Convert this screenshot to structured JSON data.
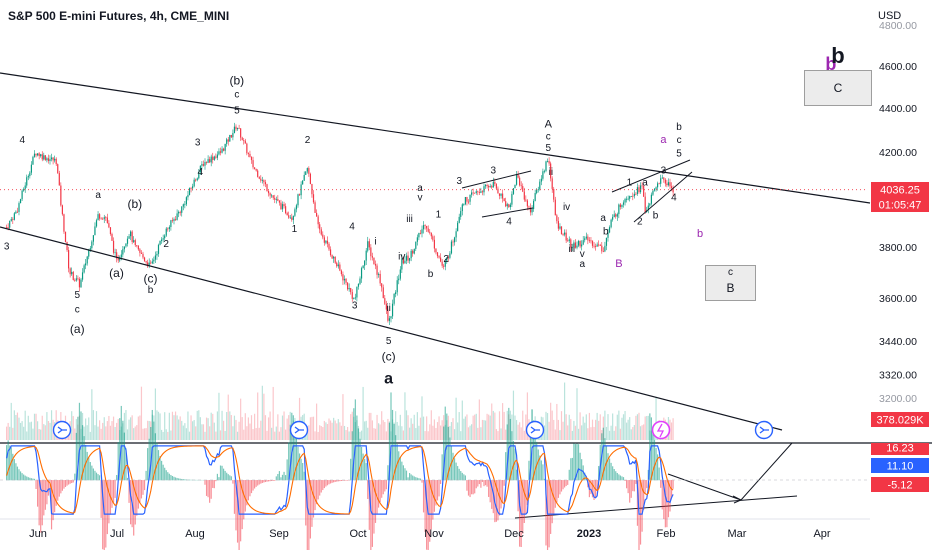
{
  "header": {
    "title": "S&P 500 E-mini Futures, 4h, CME_MINI",
    "currency": "USD"
  },
  "price_tag": {
    "price": "4036.25",
    "countdown": "01:05:47"
  },
  "volume_tag": "378.029K",
  "oscillator_tags": {
    "top": "16.23",
    "mid": "11.10",
    "bottom": "-5.12"
  },
  "chart_data": {
    "type": "candlestick",
    "y_axis": {
      "ticks": [
        "4600.00",
        "4400.00",
        "4200.00",
        "4000.00",
        "3800.00",
        "3600.00",
        "3440.00",
        "3320.00"
      ],
      "partial_ticks": [
        "4800.00",
        "3200.00"
      ]
    },
    "x_axis": {
      "ticks": [
        "Jun",
        "Jul",
        "Aug",
        "Sep",
        "Oct",
        "Nov",
        "Dec",
        "2023",
        "Feb",
        "Mar",
        "Apr"
      ]
    },
    "price_path": [
      [
        "2022-05-20",
        3880
      ],
      [
        "2022-05-24",
        3950
      ],
      [
        "2022-05-31",
        4200
      ],
      [
        "2022-06-03",
        4180
      ],
      [
        "2022-06-08",
        4160
      ],
      [
        "2022-06-10",
        3950
      ],
      [
        "2022-06-13",
        3700
      ],
      [
        "2022-06-17",
        3650
      ],
      [
        "2022-06-24",
        3930
      ],
      [
        "2022-06-27",
        3920
      ],
      [
        "2022-07-01",
        3740
      ],
      [
        "2022-07-06",
        3860
      ],
      [
        "2022-07-08",
        3800
      ],
      [
        "2022-07-14",
        3720
      ],
      [
        "2022-07-19",
        3850
      ],
      [
        "2022-07-26",
        3960
      ],
      [
        "2022-08-03",
        4150
      ],
      [
        "2022-08-10",
        4200
      ],
      [
        "2022-08-16",
        4320
      ],
      [
        "2022-08-22",
        4140
      ],
      [
        "2022-08-30",
        4000
      ],
      [
        "2022-09-06",
        3920
      ],
      [
        "2022-09-12",
        4130
      ],
      [
        "2022-09-16",
        3880
      ],
      [
        "2022-09-23",
        3730
      ],
      [
        "2022-09-30",
        3590
      ],
      [
        "2022-10-05",
        3810
      ],
      [
        "2022-10-10",
        3660
      ],
      [
        "2022-10-13",
        3500
      ],
      [
        "2022-10-18",
        3740
      ],
      [
        "2022-10-21",
        3760
      ],
      [
        "2022-10-27",
        3900
      ],
      [
        "2022-11-03",
        3710
      ],
      [
        "2022-11-07",
        3840
      ],
      [
        "2022-11-10",
        3980
      ],
      [
        "2022-11-15",
        4020
      ],
      [
        "2022-11-22",
        4060
      ],
      [
        "2022-11-28",
        3960
      ],
      [
        "2022-12-01",
        4100
      ],
      [
        "2022-12-06",
        3940
      ],
      [
        "2022-12-13",
        4180
      ],
      [
        "2022-12-16",
        3900
      ],
      [
        "2022-12-22",
        3800
      ],
      [
        "2022-12-28",
        3830
      ],
      [
        "2023-01-03",
        3790
      ],
      [
        "2023-01-06",
        3900
      ],
      [
        "2023-01-11",
        4000
      ],
      [
        "2023-01-18",
        4050
      ],
      [
        "2023-01-19",
        3940
      ],
      [
        "2023-01-24",
        4070
      ],
      [
        "2023-01-26",
        4080
      ],
      [
        "2023-01-30",
        4036
      ]
    ],
    "current_price": 4036.25,
    "wave_labels": [
      {
        "t": "2022-05-26",
        "p": 4240,
        "text": "4"
      },
      {
        "t": "2022-05-20",
        "p": 3790,
        "text": "3"
      },
      {
        "t": "2022-06-16",
        "p": 3600,
        "text": "5"
      },
      {
        "t": "2022-06-16",
        "p": 3545,
        "text": "c"
      },
      {
        "t": "2022-06-16",
        "p": 3470,
        "text": "(a)"
      },
      {
        "t": "2022-06-24",
        "p": 4000,
        "text": "a"
      },
      {
        "t": "2022-07-01",
        "p": 3680,
        "text": "(a)"
      },
      {
        "t": "2022-07-08",
        "p": 3960,
        "text": "(b)"
      },
      {
        "t": "2022-07-14",
        "p": 3660,
        "text": "(c)"
      },
      {
        "t": "2022-07-14",
        "p": 3620,
        "text": "b"
      },
      {
        "t": "2022-07-20",
        "p": 3800,
        "text": "2"
      },
      {
        "t": "2022-08-01",
        "p": 4230,
        "text": "3"
      },
      {
        "t": "2022-08-02",
        "p": 4100,
        "text": "4"
      },
      {
        "t": "2022-08-16",
        "p": 4510,
        "text": "(b)"
      },
      {
        "t": "2022-08-16",
        "p": 4450,
        "text": "c"
      },
      {
        "t": "2022-08-16",
        "p": 4375,
        "text": "5"
      },
      {
        "t": "2022-09-12",
        "p": 4240,
        "text": "2"
      },
      {
        "t": "2022-09-07",
        "p": 3860,
        "text": "1"
      },
      {
        "t": "2022-09-29",
        "p": 3870,
        "text": "4"
      },
      {
        "t": "2022-09-30",
        "p": 3560,
        "text": "3"
      },
      {
        "t": "2022-10-08",
        "p": 3810,
        "text": "i"
      },
      {
        "t": "2022-10-13",
        "p": 3550,
        "text": "ii"
      },
      {
        "t": "2022-10-13",
        "p": 3430,
        "text": "5"
      },
      {
        "t": "2022-10-13",
        "p": 3370,
        "text": "(c)"
      },
      {
        "t": "2022-10-13",
        "p": 3290,
        "text": "a"
      },
      {
        "t": "2022-10-18",
        "p": 3750,
        "text": "iv"
      },
      {
        "t": "2022-10-21",
        "p": 3900,
        "text": "iii"
      },
      {
        "t": "2022-10-25",
        "p": 3990,
        "text": "v"
      },
      {
        "t": "2022-10-25",
        "p": 4030,
        "text": "a"
      },
      {
        "t": "2022-10-29",
        "p": 3680,
        "text": "b"
      },
      {
        "t": "2022-11-01",
        "p": 3920,
        "text": "1"
      },
      {
        "t": "2022-11-04",
        "p": 3740,
        "text": "2"
      },
      {
        "t": "2022-11-09",
        "p": 4060,
        "text": "3"
      },
      {
        "t": "2022-11-22",
        "p": 4105,
        "text": "3"
      },
      {
        "t": "2022-11-28",
        "p": 3890,
        "text": "4"
      },
      {
        "t": "2022-12-13",
        "p": 4310,
        "text": "A"
      },
      {
        "t": "2022-12-13",
        "p": 4255,
        "text": "c"
      },
      {
        "t": "2022-12-13",
        "p": 4205,
        "text": "5"
      },
      {
        "t": "2022-12-14",
        "p": 4100,
        "text": "ii"
      },
      {
        "t": "2022-12-20",
        "p": 3950,
        "text": "iv"
      },
      {
        "t": "2022-12-22",
        "p": 3780,
        "text": "iii"
      },
      {
        "t": "2022-12-26",
        "p": 3760,
        "text": "v"
      },
      {
        "t": "2022-12-26",
        "p": 3720,
        "text": "a"
      },
      {
        "t": "2023-01-04",
        "p": 3850,
        "text": "b"
      },
      {
        "t": "2023-01-03",
        "p": 3905,
        "text": "a"
      },
      {
        "t": "2023-01-13",
        "p": 4055,
        "text": "1"
      },
      {
        "t": "2023-01-17",
        "p": 3890,
        "text": "2"
      },
      {
        "t": "2023-01-19",
        "p": 4055,
        "text": "a"
      },
      {
        "t": "2023-01-23",
        "p": 3915,
        "text": "b"
      },
      {
        "t": "2023-01-26",
        "p": 4105,
        "text": "3"
      },
      {
        "t": "2023-01-30",
        "p": 3990,
        "text": "4"
      },
      {
        "t": "2023-02-01",
        "p": 4300,
        "text": "b"
      },
      {
        "t": "2023-02-01",
        "p": 4240,
        "text": "c"
      },
      {
        "t": "2023-02-01",
        "p": 4180,
        "text": "5"
      }
    ],
    "purple_labels": [
      {
        "t": "2023-01-09",
        "p": 3720,
        "text": "B"
      },
      {
        "t": "2023-01-26",
        "p": 4240,
        "text": "a"
      },
      {
        "t": "2023-02-09",
        "p": 3840,
        "text": "b"
      },
      {
        "t": "2023-03-31",
        "p": 4580,
        "text": "b"
      },
      {
        "t": "2023-03-31",
        "p": 4515,
        "text": "c"
      }
    ],
    "boxes": [
      {
        "top_text": "b",
        "label": "C"
      },
      {
        "top_text": "c",
        "label": "B"
      }
    ],
    "oscillator_ticks": [
      "16.23",
      "11.10",
      "-5.12"
    ]
  }
}
